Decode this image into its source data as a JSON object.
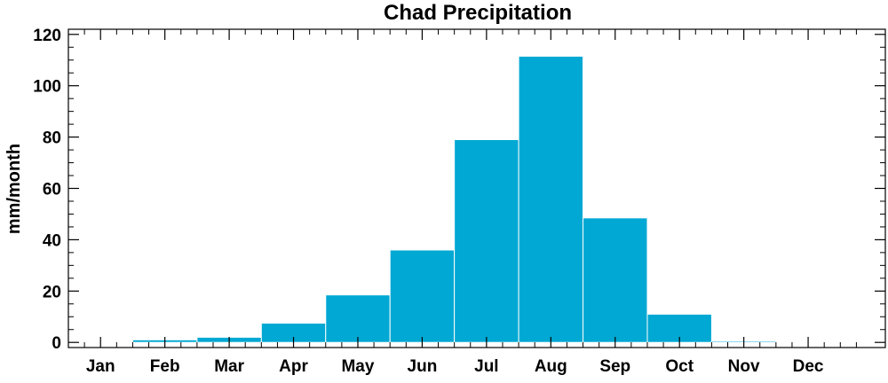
{
  "chart_data": {
    "type": "bar",
    "title": "Chad Precipitation",
    "xlabel": "",
    "ylabel": "mm/month",
    "categories": [
      "Jan",
      "Feb",
      "Mar",
      "Apr",
      "May",
      "Jun",
      "Jul",
      "Aug",
      "Sep",
      "Oct",
      "Nov",
      "Dec"
    ],
    "values": [
      0,
      1,
      2,
      7.5,
      18.5,
      36,
      79,
      111.5,
      48.5,
      11,
      0.5,
      0
    ],
    "ylim": [
      -2,
      122
    ],
    "yticks": [
      0,
      20,
      40,
      60,
      80,
      100,
      120
    ],
    "grid": false,
    "legend": "none",
    "bar_color": "#00a8d3",
    "bar_edge_color": "#ffffff"
  }
}
